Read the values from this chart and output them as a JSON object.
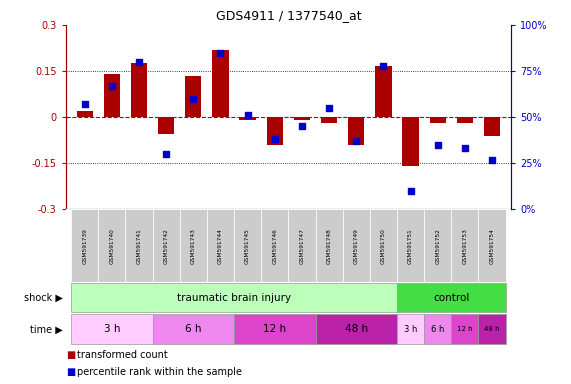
{
  "title": "GDS4911 / 1377540_at",
  "samples": [
    "GSM591739",
    "GSM591740",
    "GSM591741",
    "GSM591742",
    "GSM591743",
    "GSM591744",
    "GSM591745",
    "GSM591746",
    "GSM591747",
    "GSM591748",
    "GSM591749",
    "GSM591750",
    "GSM591751",
    "GSM591752",
    "GSM591753",
    "GSM591754"
  ],
  "bar_values": [
    0.02,
    0.14,
    0.175,
    -0.055,
    0.135,
    0.22,
    -0.01,
    -0.09,
    -0.01,
    -0.02,
    -0.09,
    0.165,
    -0.16,
    -0.02,
    -0.02,
    -0.06
  ],
  "dot_values": [
    57,
    67,
    80,
    30,
    60,
    85,
    51,
    38,
    45,
    55,
    37,
    78,
    10,
    35,
    33,
    27
  ],
  "bar_color": "#aa0000",
  "dot_color": "#0000cc",
  "ylim_left": [
    -0.3,
    0.3
  ],
  "ylim_right": [
    0,
    100
  ],
  "yticks_left": [
    -0.3,
    -0.15,
    0.0,
    0.15,
    0.3
  ],
  "yticks_right": [
    0,
    25,
    50,
    75,
    100
  ],
  "ytick_labels_right": [
    "0%",
    "25%",
    "50%",
    "75%",
    "100%"
  ],
  "hline_y": 0.0,
  "dotted_lines": [
    -0.15,
    0.15
  ],
  "bg_color": "#ffffff",
  "plot_bg_color": "#ffffff",
  "shock_tbi_label": "traumatic brain injury",
  "shock_control_label": "control",
  "shock_tbi_color": "#bbffbb",
  "shock_control_color": "#44dd44",
  "time_colors_cycle": [
    "#ffccff",
    "#ee88ee",
    "#dd44cc",
    "#bb22aa"
  ],
  "label_shock": "shock",
  "label_time": "time",
  "legend_bar_label": "transformed count",
  "legend_dot_label": "percentile rank within the sample",
  "n_tbi": 12,
  "n_control": 4,
  "sample_box_color": "#cccccc",
  "sample_box_alt_color": "#bbbbbb"
}
